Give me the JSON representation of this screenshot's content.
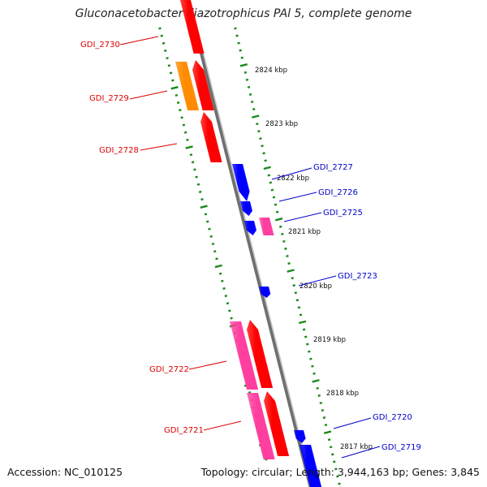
{
  "title": "Gluconacetobacter diazotrophicus PAl 5, complete genome",
  "footer": {
    "accession": "Accession: NC_010125",
    "stats": "Topology: circular; Length: 3,944,163 bp; Genes: 3,845"
  },
  "colors": {
    "forward_label": "#dd0000",
    "reverse_label": "#0000cc",
    "tick": "#1a8a1a",
    "backbone": "#888888",
    "red": "#ff0000",
    "orange": "#ff8c00",
    "magenta": "#ff3fa0",
    "blue": "#0000ff"
  },
  "scale": {
    "unit": "kbp",
    "ticks": [
      {
        "kbp": 2824,
        "label": "2824 kbp"
      },
      {
        "kbp": 2823,
        "label": "2823 kbp"
      },
      {
        "kbp": 2822,
        "label": "2822 kbp"
      },
      {
        "kbp": 2821,
        "label": "2821 kbp"
      },
      {
        "kbp": 2820,
        "label": "2820 kbp"
      },
      {
        "kbp": 2819,
        "label": "2819 kbp"
      },
      {
        "kbp": 2818,
        "label": "2818 kbp"
      },
      {
        "kbp": 2817,
        "label": "2817 kbp"
      }
    ]
  },
  "gene_labels": {
    "forward": [
      "GDI_2730",
      "GDI_2729",
      "GDI_2728",
      "GDI_2722",
      "GDI_2721"
    ],
    "reverse": [
      "GDI_2727",
      "GDI_2726",
      "GDI_2725",
      "GDI_2723",
      "GDI_2720",
      "GDI_2719"
    ]
  }
}
